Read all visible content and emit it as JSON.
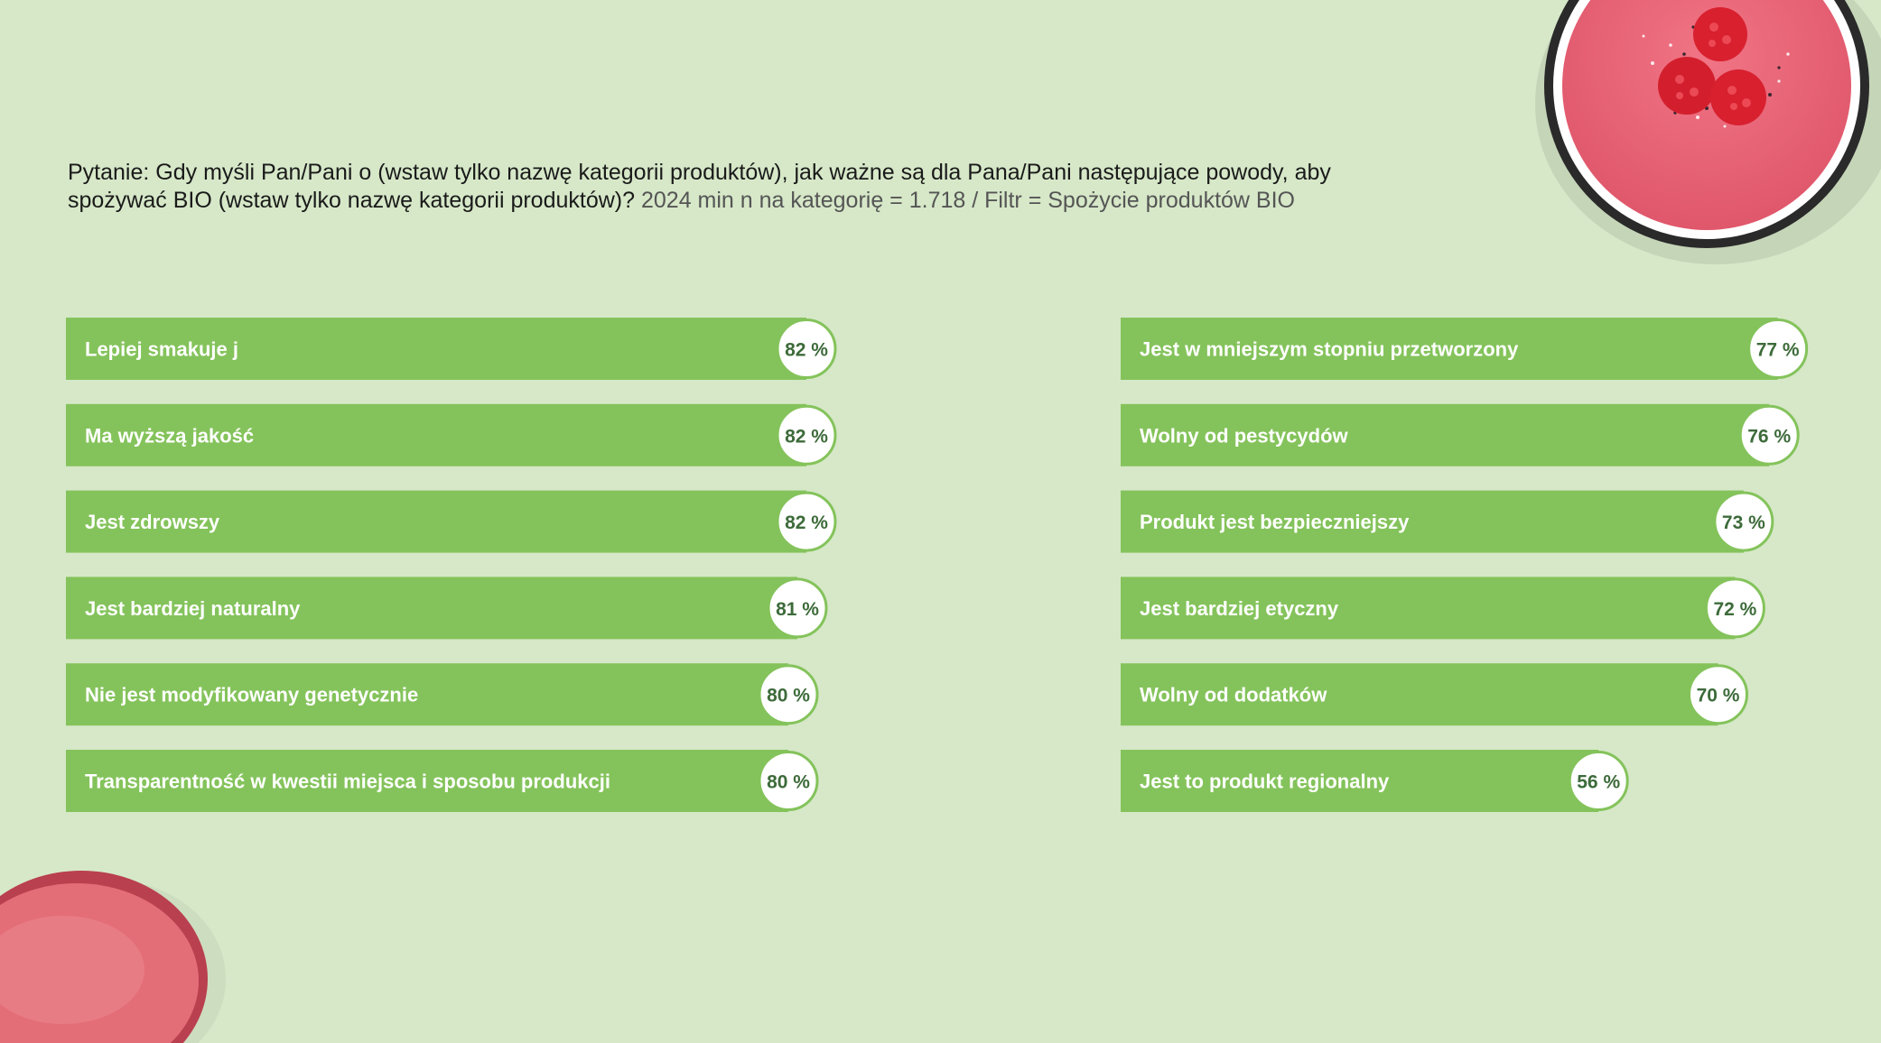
{
  "question": {
    "text": "Pytanie: Gdy myśli Pan/Pani o (wstaw tylko nazwę kategorii produktów), jak ważne są dla Pana/Pani następujące powody, aby spożywać BIO (wstaw tylko nazwę kategorii produktów)?",
    "meta": "2024 min n na kategorię = 1.718 / Filtr = Spożycie produktów BIO"
  },
  "colors": {
    "bar": "#84c35b",
    "value_text": "#3d6b3a",
    "background": "#d6e8c8"
  },
  "chart_data": [
    {
      "type": "bar",
      "orientation": "horizontal",
      "unit": "%",
      "xlim": [
        0,
        100
      ],
      "categories": [
        "Lepiej smakuje j",
        "Ma wyższą jakość",
        "Jest zdrowszy",
        "Jest bardziej naturalny",
        "Nie jest modyfikowany genetycznie",
        "Transparentność w kwestii miejsca i sposobu produkcji"
      ],
      "values": [
        82,
        82,
        82,
        81,
        80,
        80
      ],
      "value_labels": [
        "82 %",
        "82 %",
        "82 %",
        "81 %",
        "80 %",
        "80 %"
      ]
    },
    {
      "type": "bar",
      "orientation": "horizontal",
      "unit": "%",
      "xlim": [
        0,
        100
      ],
      "categories": [
        "Jest w mniejszym stopniu przetworzony",
        "Wolny od pestycydów",
        "Produkt jest bezpieczniejszy",
        "Jest bardziej etyczny",
        "Wolny od dodatków",
        "Jest to produkt regionalny"
      ],
      "values": [
        77,
        76,
        73,
        72,
        70,
        56
      ],
      "value_labels": [
        "77 %",
        "76 %",
        "73 %",
        "72 %",
        "70 %",
        "56 %"
      ]
    }
  ],
  "decorations": {
    "top_right": "smoothie-bowl-with-raspberries",
    "bottom_left": "pink-macaron"
  }
}
